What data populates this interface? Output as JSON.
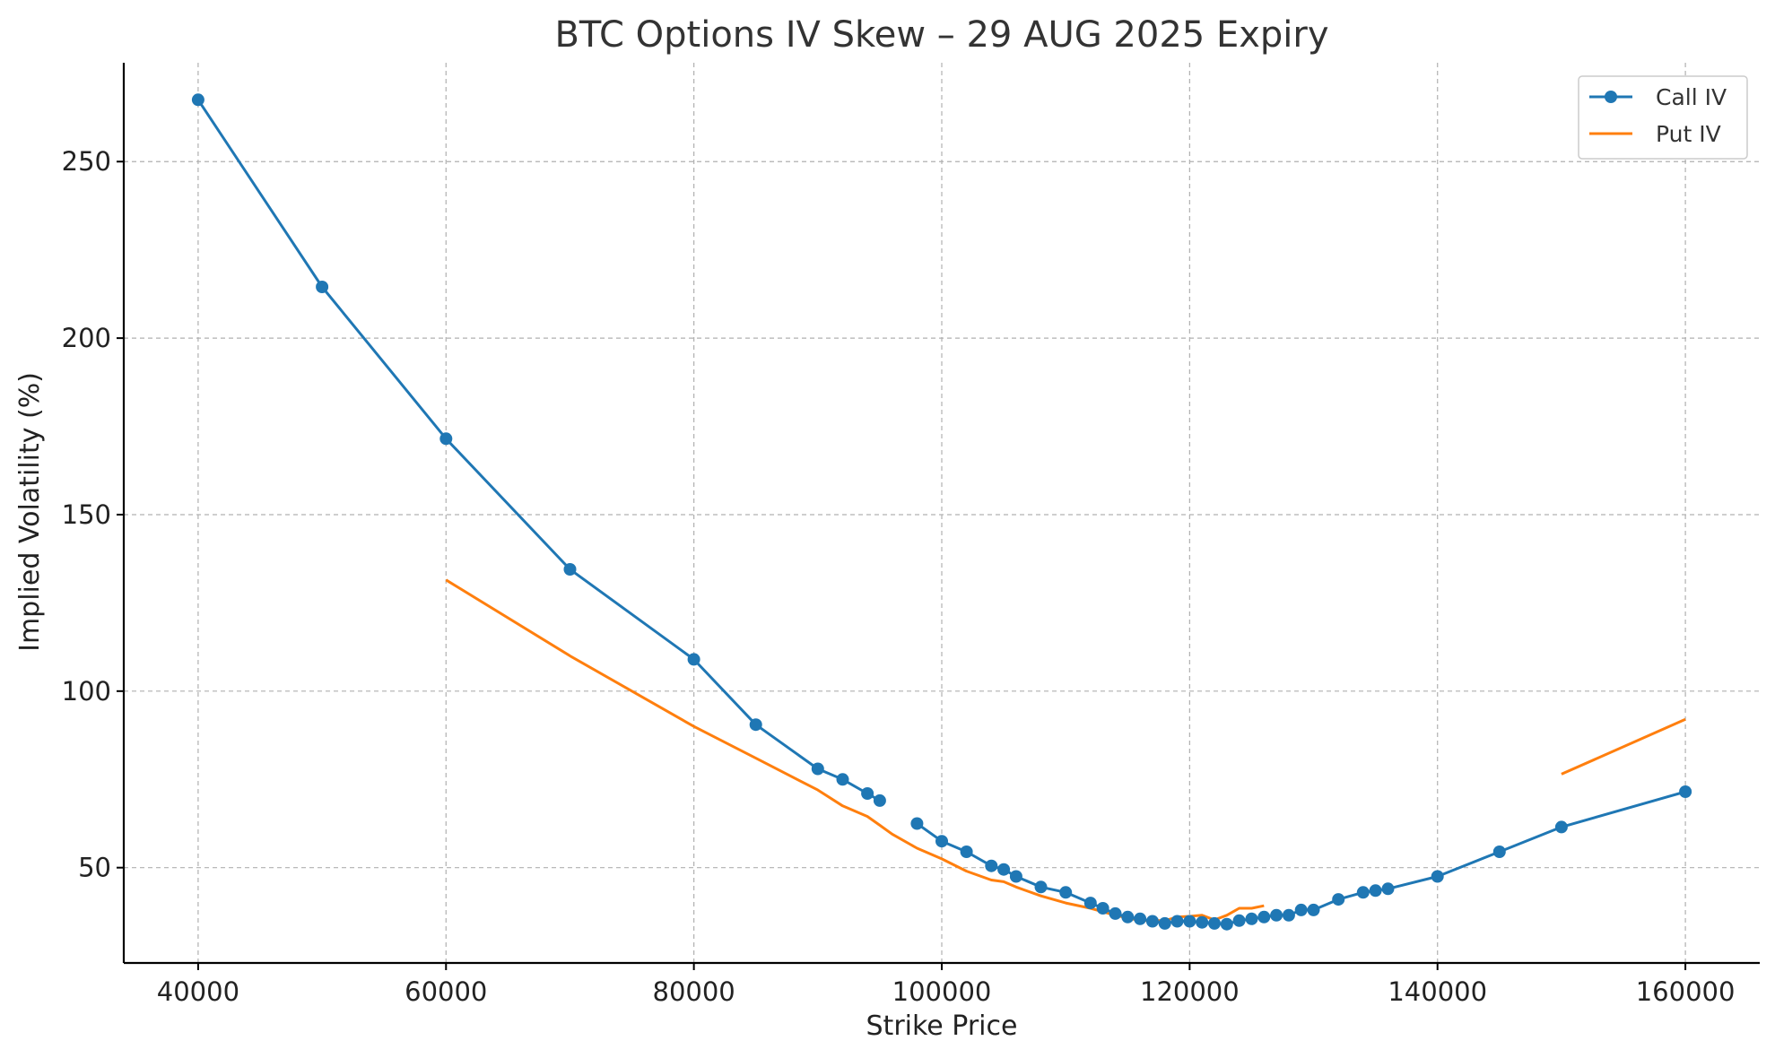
{
  "chart_data": {
    "type": "line",
    "title": "BTC Options IV Skew – 29 AUG 2025 Expiry",
    "xlabel": "Strike Price",
    "ylabel": "Implied Volatility (%)",
    "xlim": [
      34000,
      166000
    ],
    "ylim": [
      23,
      278
    ],
    "x_ticks": [
      40000,
      60000,
      80000,
      100000,
      120000,
      140000,
      160000
    ],
    "y_ticks": [
      50,
      100,
      150,
      200,
      250
    ],
    "grid": true,
    "legend_position": "top-right",
    "series": [
      {
        "name": "Call IV",
        "color": "#1f77b4",
        "marker": "circle",
        "segments": [
          [
            [
              40000,
              267.5
            ],
            [
              50000,
              214.5
            ],
            [
              60000,
              171.5
            ],
            [
              70000,
              134.5
            ],
            [
              80000,
              109
            ],
            [
              85000,
              90.5
            ],
            [
              90000,
              78
            ],
            [
              92000,
              75
            ],
            [
              94000,
              71
            ],
            [
              95000,
              69
            ]
          ],
          [
            [
              98000,
              62.5
            ],
            [
              100000,
              57.5
            ],
            [
              102000,
              54.5
            ],
            [
              104000,
              50.5
            ],
            [
              105000,
              49.5
            ],
            [
              106000,
              47.5
            ],
            [
              108000,
              44.5
            ],
            [
              110000,
              43
            ],
            [
              112000,
              40
            ],
            [
              113000,
              38.5
            ],
            [
              114000,
              37
            ],
            [
              115000,
              36
            ],
            [
              116000,
              35.5
            ],
            [
              117000,
              34.8
            ],
            [
              118000,
              34.2
            ],
            [
              119000,
              34.8
            ],
            [
              120000,
              34.8
            ],
            [
              121000,
              34.5
            ],
            [
              122000,
              34.2
            ],
            [
              123000,
              34
            ],
            [
              124000,
              35
            ],
            [
              125000,
              35.5
            ],
            [
              126000,
              36
            ],
            [
              127000,
              36.5
            ],
            [
              128000,
              36.5
            ],
            [
              129000,
              38
            ],
            [
              130000,
              38
            ],
            [
              132000,
              41
            ],
            [
              134000,
              43
            ],
            [
              135000,
              43.5
            ],
            [
              136000,
              44
            ],
            [
              140000,
              47.5
            ],
            [
              145000,
              54.5
            ],
            [
              150000,
              61.5
            ],
            [
              160000,
              71.5
            ]
          ]
        ]
      },
      {
        "name": "Put IV",
        "color": "#ff7f0e",
        "marker": "none",
        "segments": [
          [
            [
              60000,
              131.5
            ],
            [
              70000,
              110
            ],
            [
              80000,
              90
            ],
            [
              85000,
              81
            ],
            [
              90000,
              72
            ],
            [
              92000,
              67.5
            ],
            [
              94000,
              64.5
            ],
            [
              95000,
              62
            ],
            [
              96000,
              59.5
            ],
            [
              98000,
              55.5
            ],
            [
              100000,
              52.5
            ],
            [
              102000,
              49
            ],
            [
              104000,
              46.5
            ],
            [
              105000,
              46
            ],
            [
              106000,
              44.5
            ],
            [
              108000,
              42
            ],
            [
              110000,
              40
            ],
            [
              112000,
              38.5
            ],
            [
              114000,
              36.5
            ],
            [
              116000,
              35
            ],
            [
              118000,
              35
            ],
            [
              119000,
              36
            ],
            [
              120000,
              36.2
            ],
            [
              121000,
              36.5
            ],
            [
              122000,
              35.2
            ],
            [
              123000,
              36.5
            ],
            [
              124000,
              38.5
            ],
            [
              125000,
              38.5
            ],
            [
              126000,
              39.2
            ]
          ],
          [
            [
              150000,
              76.5
            ],
            [
              160000,
              92
            ]
          ]
        ]
      }
    ]
  }
}
